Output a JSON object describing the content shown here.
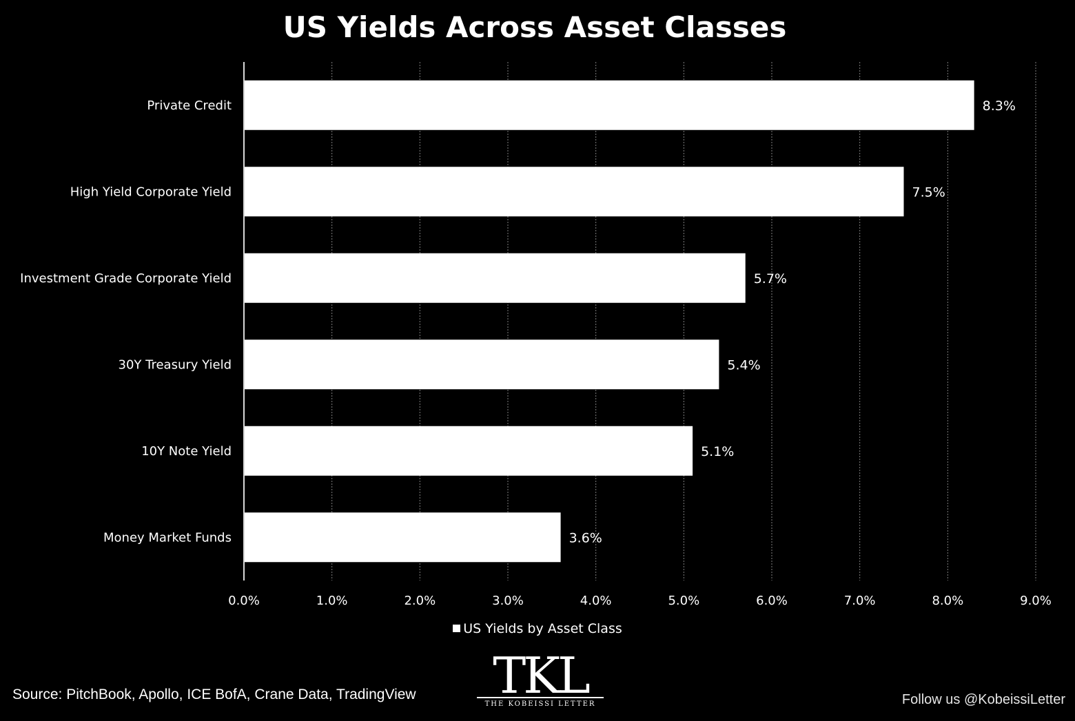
{
  "chart_data": {
    "type": "bar",
    "orientation": "horizontal",
    "title": "US Yields Across Asset Classes",
    "categories": [
      "Private Credit",
      "High Yield Corporate Yield",
      "Investment Grade Corporate Yield",
      "30Y Treasury Yield",
      "10Y Note Yield",
      "Money Market Funds"
    ],
    "series": [
      {
        "name": "US Yields by Asset Class",
        "values": [
          8.3,
          7.5,
          5.7,
          5.4,
          5.1,
          3.6
        ],
        "data_labels": [
          "8.3%",
          "7.5%",
          "5.7%",
          "5.4%",
          "5.1%",
          "3.6%"
        ]
      }
    ],
    "xlim": [
      0,
      9
    ],
    "xticks": [
      0,
      1,
      2,
      3,
      4,
      5,
      6,
      7,
      8,
      9
    ],
    "xtick_labels": [
      "0.0%",
      "1.0%",
      "2.0%",
      "3.0%",
      "4.0%",
      "5.0%",
      "6.0%",
      "7.0%",
      "8.0%",
      "9.0%"
    ],
    "xlabel": "",
    "ylabel": "",
    "grid": "vertical dashed",
    "legend": "bottom-center",
    "colors": {
      "background": "#000000",
      "bar": "#ffffff",
      "text": "#ffffff",
      "grid": "#7f7f7f"
    }
  },
  "footer": {
    "source": "Source: PitchBook, Apollo, ICE BofA, Crane Data, TradingView",
    "follow": "Follow us @KobeissiLetter"
  },
  "logo": {
    "mark": "TKL",
    "subtitle": "THE KOBEISSI LETTER"
  }
}
